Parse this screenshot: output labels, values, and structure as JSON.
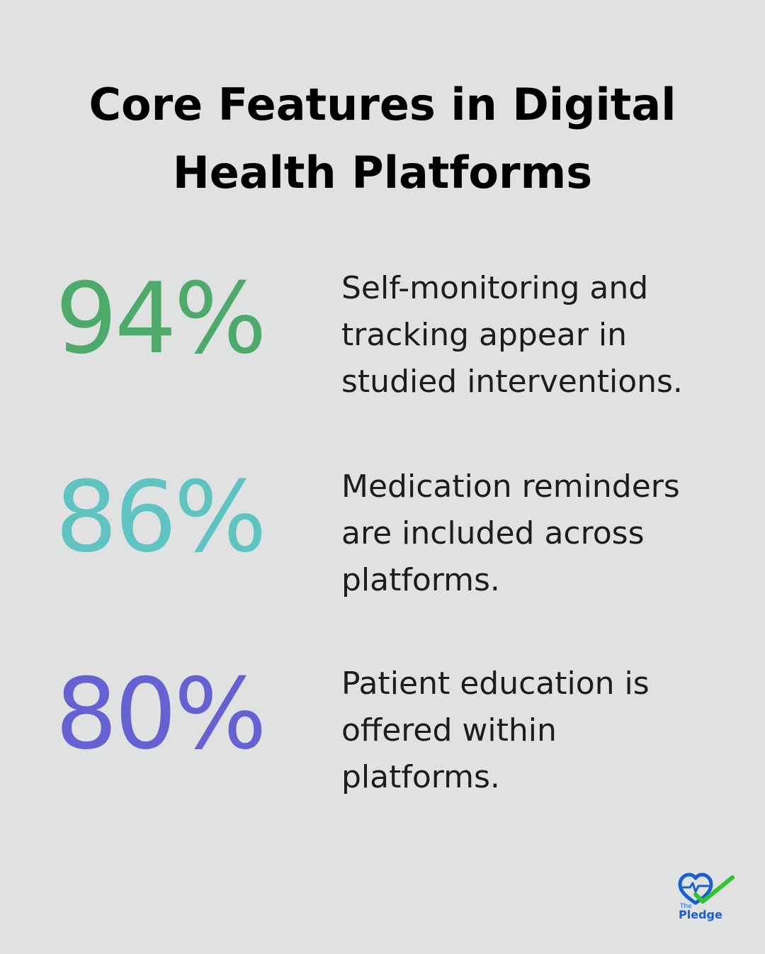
{
  "title_lines": [
    "Core Features in Digital",
    "Health Platforms"
  ],
  "stats": [
    {
      "value": "94%",
      "color": "#4eaa6b",
      "lines": [
        "Self-monitoring and",
        "tracking appear in",
        "studied interventions."
      ]
    },
    {
      "value": "86%",
      "color": "#5ec3c1",
      "lines": [
        "Medication reminders",
        "are included across",
        "platforms."
      ]
    },
    {
      "value": "80%",
      "color": "#6561d3",
      "lines": [
        "Patient education is",
        "offered within",
        "platforms."
      ]
    }
  ],
  "logo": {
    "small_text": "The",
    "name": "Pledge",
    "icon": "heart-check-icon",
    "heart_color": "#1a5fd1",
    "check_color": "#2fc435"
  }
}
